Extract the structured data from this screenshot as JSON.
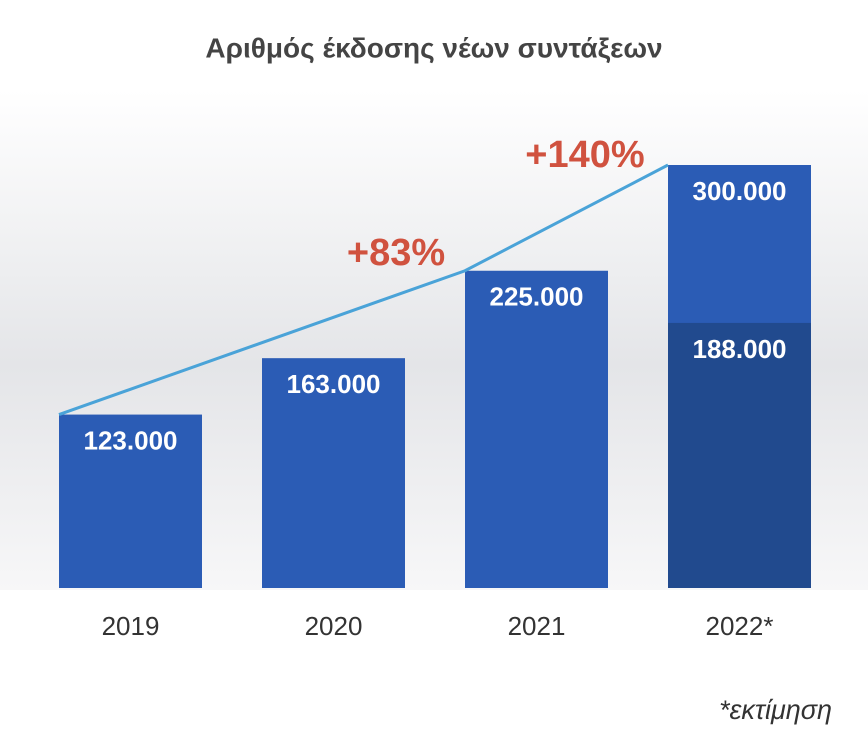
{
  "chart_data": {
    "type": "bar",
    "title": "Αριθμός έκδοσης νέων συντάξεων",
    "categories": [
      "2019",
      "2020",
      "2021",
      "2022*"
    ],
    "series": [
      {
        "color": "#2b5cb5",
        "values": [
          123000,
          163000,
          225000,
          300000
        ],
        "value_labels": [
          "123.000",
          "163.000",
          "225.000",
          "300.000"
        ]
      },
      {
        "color": "#214a8e",
        "values": [
          null,
          null,
          null,
          188000
        ],
        "value_labels": [
          null,
          null,
          null,
          "188.000"
        ]
      }
    ],
    "ylim": [
      0,
      300000
    ],
    "trend_color": "#4aa3d8",
    "annotations": [
      "+83%",
      "+140%"
    ],
    "annotation_color": "#d0523f",
    "footnote": "*εκτίμηση"
  }
}
